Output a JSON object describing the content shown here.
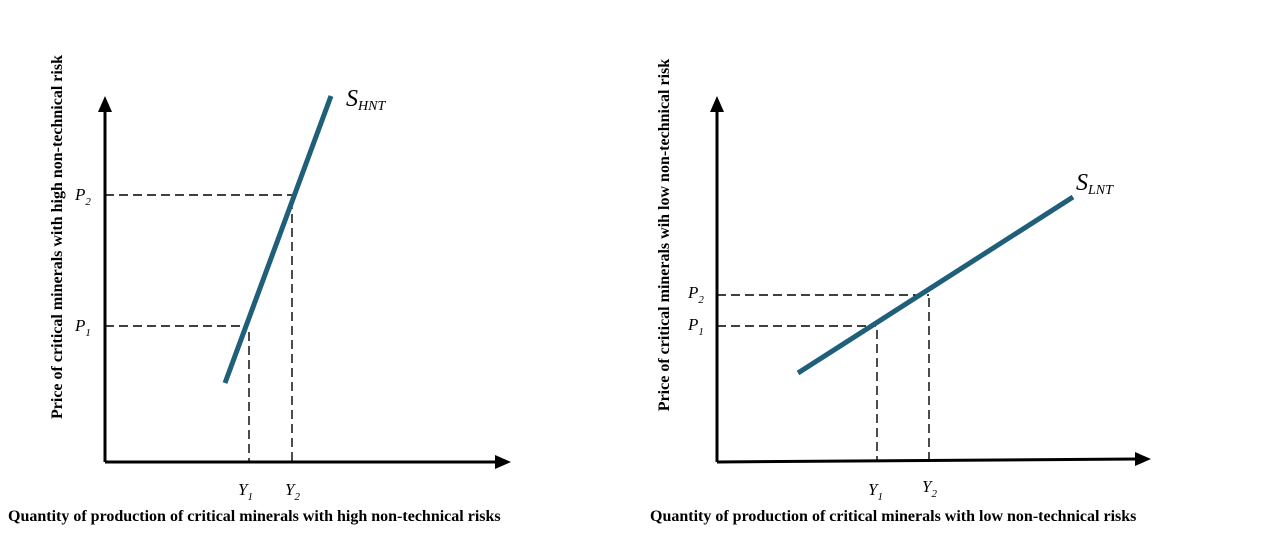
{
  "diagrams": [
    {
      "ylabel": "Price of critical minerals with high non-technical risk",
      "xlabel": "Quantity of production  of critical minerals with high non-technical risks",
      "curve": {
        "letter": "S",
        "subscript": "HNT",
        "color": "#1f5f7a"
      },
      "price_ticks": [
        {
          "letter": "P",
          "sub": "2"
        },
        {
          "letter": "P",
          "sub": "1"
        }
      ],
      "quantity_ticks": [
        {
          "letter": "Y",
          "sub": "1"
        },
        {
          "letter": "Y",
          "sub": "2"
        }
      ]
    },
    {
      "ylabel": "Price of critical minerals wih low  non-technical risk",
      "xlabel": "Quantity of production  of critical minerals with low non-technical risks",
      "curve": {
        "letter": "S",
        "subscript": "LNT",
        "color": "#1f5f7a"
      },
      "price_ticks": [
        {
          "letter": "P",
          "sub": "2"
        },
        {
          "letter": "P",
          "sub": "1"
        }
      ],
      "quantity_ticks": [
        {
          "letter": "Y",
          "sub": "1"
        },
        {
          "letter": "Y",
          "sub": "2"
        }
      ]
    }
  ]
}
